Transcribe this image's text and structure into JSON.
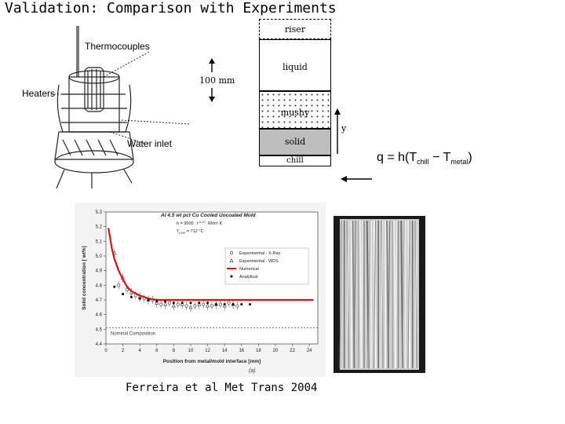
{
  "slide": {
    "title": "Validation: Comparison with Experiments"
  },
  "apparatus": {
    "labels": {
      "thermocouples": "Thermocouples",
      "heaters": "Heaters",
      "water_inlet": "Water inlet"
    }
  },
  "column_schematic": {
    "zones": {
      "riser": "riser",
      "liquid": "liquid",
      "mushy": "mushy",
      "solid": "solid",
      "chill": "chill"
    },
    "scale_label": "100 mm",
    "axis_label": "y"
  },
  "heat_flux": {
    "prefix": "q = h(T",
    "sub1": "chill",
    "mid": " − T",
    "sub2": "metal",
    "suffix": ")"
  },
  "graph": {
    "title": "Al 4.5 wt pct Cu   Cooled Uncoated Mold",
    "params": {
      "h": "h = 9500 . t",
      "h_exp": "-0.07",
      "h_unit": "W/m².K",
      "tp": "T",
      "tp_sub": "pour",
      "tp_val": " = 712 °C"
    },
    "nominal_label": "Nominal Composition",
    "xlabel": "Position from metal/mold interface [mm]",
    "ylabel": "Solid concentration [ wt%]",
    "subfig": "(a)",
    "legend": [
      "Experimental - X-Ray",
      "Experimental - WDS",
      "Numerical",
      "Analytical"
    ]
  },
  "chart_data": {
    "type": "scatter",
    "title": "Al 4.5 wt pct Cu   Cooled Uncoated Mold",
    "xlabel": "Position from metal/mold interface [mm]",
    "ylabel": "Solid concentration [ wt%]",
    "xlim": [
      0,
      25
    ],
    "ylim": [
      4.4,
      5.3
    ],
    "x_ticks": [
      0,
      2,
      4,
      6,
      8,
      10,
      12,
      14,
      16,
      18,
      20,
      22,
      24
    ],
    "y_ticks": [
      4.4,
      4.5,
      4.6,
      4.7,
      4.8,
      4.9,
      5.0,
      5.1,
      5.2,
      5.3
    ],
    "nominal_composition": 4.51,
    "series": [
      {
        "name": "Experimental - X-Ray",
        "x": [
          1.5,
          2.5,
          3.5,
          4.5,
          5.5,
          6.5,
          7.5,
          8.5,
          9.5,
          10.5,
          11.5,
          12.5,
          13.5,
          14.5,
          15.5
        ],
        "y": [
          4.8,
          4.77,
          4.73,
          4.71,
          4.7,
          4.67,
          4.68,
          4.67,
          4.66,
          4.66,
          4.67,
          4.66,
          4.67,
          4.68,
          4.66
        ]
      },
      {
        "name": "Experimental - WDS",
        "x": [
          1.0,
          2.0,
          3.0,
          4.0,
          5.0,
          6.0,
          7.0,
          8.0,
          9.0,
          10.0,
          11.0,
          12.0,
          13.0,
          14.0,
          15.0
        ],
        "y": [
          5.02,
          4.85,
          4.75,
          4.72,
          4.7,
          4.68,
          4.67,
          4.66,
          4.67,
          4.65,
          4.67,
          4.66,
          4.67,
          4.66,
          4.67
        ]
      },
      {
        "name": "Numerical",
        "x": [
          0.3,
          0.7,
          1.0,
          1.5,
          2.0,
          2.5,
          3.0,
          4.0,
          5.0,
          6.0,
          7.0,
          8.0,
          10.0,
          12.0,
          15.0,
          18.0,
          20.0,
          22.0,
          24.5
        ],
        "y": [
          5.19,
          5.05,
          4.98,
          4.9,
          4.84,
          4.79,
          4.76,
          4.73,
          4.71,
          4.7,
          4.7,
          4.7,
          4.7,
          4.7,
          4.7,
          4.7,
          4.7,
          4.7,
          4.7
        ]
      },
      {
        "name": "Analytical",
        "x": [
          1.0,
          2.0,
          3.0,
          4.0,
          5.0,
          6.0,
          7.0,
          8.0,
          9.0,
          10.0,
          11.0,
          12.0,
          13.0,
          14.0,
          15.0,
          16.0,
          17.0
        ],
        "y": [
          4.79,
          4.74,
          4.72,
          4.71,
          4.7,
          4.69,
          4.69,
          4.68,
          4.68,
          4.68,
          4.68,
          4.68,
          4.67,
          4.67,
          4.67,
          4.67,
          4.67
        ]
      }
    ]
  },
  "citation": "Ferreira et al Met Trans 2004",
  "colors": {
    "numerical": "#e01010",
    "mushy_dots": "#333333",
    "solid_zone": "#bdbdbd",
    "photo_bg": "#1a1a1a"
  }
}
